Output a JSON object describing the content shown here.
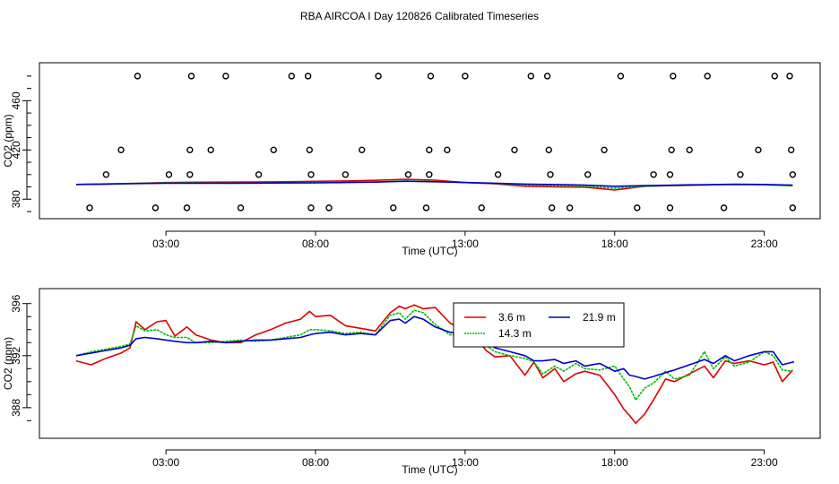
{
  "title": "RBA AIRCOA I  Day 120826  Calibrated Timeseries",
  "chart_data": [
    {
      "type": "scatter",
      "id": "top",
      "xlabel": "Time (UTC)",
      "ylabel": "CO2 (ppm)",
      "xlim": [
        0,
        24
      ],
      "ylim": [
        370,
        485
      ],
      "xticks": [
        3,
        8,
        13,
        18,
        23
      ],
      "xtick_labels": [
        "03:00",
        "08:00",
        "13:00",
        "18:00",
        "23:00"
      ],
      "yticks": [
        380,
        420,
        460
      ],
      "ytick_labels": [
        "380",
        "420",
        "460"
      ],
      "series": [
        {
          "name": "3.6 m",
          "color": "#dd0000",
          "style": "solid",
          "x": [
            0,
            1,
            2,
            3,
            4,
            5,
            6,
            7,
            8,
            9,
            10,
            11,
            12,
            13,
            14,
            15,
            16,
            17,
            18,
            19,
            20,
            21,
            22,
            23,
            23.95
          ],
          "y": [
            392.0,
            392.4,
            392.9,
            393.5,
            393.8,
            393.9,
            394.0,
            394.2,
            394.5,
            394.8,
            395.3,
            396.2,
            395.5,
            393.5,
            392.5,
            390.5,
            390.0,
            389.8,
            387.5,
            390.5,
            391.0,
            391.5,
            392.0,
            391.8,
            391.0
          ]
        },
        {
          "name": "14.3 m",
          "color": "#00bb00",
          "style": "dotted",
          "x": [
            0,
            1,
            2,
            3,
            4,
            5,
            6,
            7,
            8,
            9,
            10,
            11,
            12,
            13,
            14,
            15,
            16,
            17,
            18,
            19,
            20,
            21,
            22,
            23,
            23.95
          ],
          "y": [
            392.0,
            392.3,
            392.8,
            393.3,
            393.2,
            393.1,
            393.1,
            393.2,
            393.4,
            393.7,
            394.0,
            394.8,
            394.3,
            393.5,
            392.8,
            391.5,
            391.0,
            390.5,
            389.0,
            390.5,
            391.2,
            391.6,
            392.0,
            391.6,
            390.8
          ]
        },
        {
          "name": "21.9 m",
          "color": "#0000cc",
          "style": "solid",
          "x": [
            0,
            1,
            2,
            3,
            4,
            5,
            6,
            7,
            8,
            9,
            10,
            11,
            12,
            13,
            14,
            15,
            16,
            17,
            18,
            19,
            20,
            21,
            22,
            23,
            23.95
          ],
          "y": [
            392.0,
            392.3,
            392.7,
            393.0,
            393.0,
            393.0,
            393.1,
            393.2,
            393.3,
            393.6,
            393.9,
            394.6,
            394.2,
            393.6,
            393.0,
            392.3,
            391.9,
            391.5,
            390.5,
            391.0,
            391.5,
            391.8,
            392.2,
            392.0,
            391.5
          ]
        }
      ],
      "points": [
        {
          "x": 0.45,
          "y": 373
        },
        {
          "x": 1.0,
          "y": 400
        },
        {
          "x": 1.5,
          "y": 420
        },
        {
          "x": 2.05,
          "y": 480
        },
        {
          "x": 2.65,
          "y": 373
        },
        {
          "x": 3.1,
          "y": 400
        },
        {
          "x": 3.7,
          "y": 373
        },
        {
          "x": 3.8,
          "y": 400
        },
        {
          "x": 3.8,
          "y": 420
        },
        {
          "x": 3.85,
          "y": 480
        },
        {
          "x": 4.5,
          "y": 420
        },
        {
          "x": 5.0,
          "y": 480
        },
        {
          "x": 5.5,
          "y": 373
        },
        {
          "x": 6.1,
          "y": 400
        },
        {
          "x": 6.6,
          "y": 420
        },
        {
          "x": 7.2,
          "y": 480
        },
        {
          "x": 7.75,
          "y": 480
        },
        {
          "x": 7.8,
          "y": 420
        },
        {
          "x": 7.85,
          "y": 400
        },
        {
          "x": 7.85,
          "y": 373
        },
        {
          "x": 8.45,
          "y": 373
        },
        {
          "x": 9.0,
          "y": 400
        },
        {
          "x": 9.55,
          "y": 420
        },
        {
          "x": 10.1,
          "y": 480
        },
        {
          "x": 10.6,
          "y": 373
        },
        {
          "x": 11.1,
          "y": 400
        },
        {
          "x": 11.7,
          "y": 373
        },
        {
          "x": 11.8,
          "y": 400
        },
        {
          "x": 11.8,
          "y": 420
        },
        {
          "x": 11.85,
          "y": 480
        },
        {
          "x": 12.4,
          "y": 420
        },
        {
          "x": 13.0,
          "y": 480
        },
        {
          "x": 13.55,
          "y": 373
        },
        {
          "x": 14.1,
          "y": 400
        },
        {
          "x": 14.65,
          "y": 420
        },
        {
          "x": 15.2,
          "y": 480
        },
        {
          "x": 15.75,
          "y": 480
        },
        {
          "x": 15.8,
          "y": 420
        },
        {
          "x": 15.85,
          "y": 400
        },
        {
          "x": 15.9,
          "y": 373
        },
        {
          "x": 16.5,
          "y": 373
        },
        {
          "x": 17.1,
          "y": 400
        },
        {
          "x": 17.65,
          "y": 420
        },
        {
          "x": 18.2,
          "y": 480
        },
        {
          "x": 18.75,
          "y": 373
        },
        {
          "x": 19.3,
          "y": 400
        },
        {
          "x": 19.85,
          "y": 373
        },
        {
          "x": 19.85,
          "y": 400
        },
        {
          "x": 19.9,
          "y": 420
        },
        {
          "x": 19.95,
          "y": 480
        },
        {
          "x": 20.5,
          "y": 420
        },
        {
          "x": 21.1,
          "y": 480
        },
        {
          "x": 21.65,
          "y": 373
        },
        {
          "x": 22.2,
          "y": 400
        },
        {
          "x": 22.8,
          "y": 420
        },
        {
          "x": 23.35,
          "y": 480
        },
        {
          "x": 23.85,
          "y": 480
        },
        {
          "x": 23.9,
          "y": 420
        },
        {
          "x": 23.95,
          "y": 400
        },
        {
          "x": 23.95,
          "y": 373
        }
      ]
    },
    {
      "type": "line",
      "id": "bottom",
      "xlabel": "Time (UTC)",
      "ylabel": "CO2 (ppm)",
      "xlim": [
        0,
        24
      ],
      "ylim": [
        386.2,
        396.6
      ],
      "xticks": [
        3,
        8,
        13,
        18,
        23
      ],
      "xtick_labels": [
        "03:00",
        "08:00",
        "13:00",
        "18:00",
        "23:00"
      ],
      "yticks": [
        388,
        392,
        396
      ],
      "ytick_labels": [
        "388",
        "392",
        "396"
      ],
      "legend": {
        "position": "center-right",
        "entries": [
          "3.6 m",
          "14.3 m",
          "21.9 m"
        ]
      },
      "series": [
        {
          "name": "3.6 m",
          "color": "#dd0000",
          "style": "solid",
          "x": [
            0,
            0.5,
            1,
            1.5,
            1.8,
            2,
            2.3,
            2.7,
            3,
            3.3,
            3.7,
            4,
            4.5,
            5,
            5.5,
            6,
            6.5,
            7,
            7.5,
            7.8,
            8,
            8.5,
            9,
            9.5,
            10,
            10.5,
            10.8,
            11,
            11.3,
            11.6,
            12,
            12.5,
            13,
            13.3,
            13.7,
            14,
            14.5,
            15,
            15.3,
            15.6,
            16,
            16.3,
            16.7,
            17,
            17.5,
            18,
            18.3,
            18.5,
            18.7,
            19,
            19.3,
            19.7,
            20,
            20.5,
            21,
            21.3,
            21.7,
            22,
            22.5,
            23,
            23.3,
            23.6,
            23.95
          ],
          "y": [
            391.6,
            391.3,
            391.8,
            392.2,
            392.6,
            394.6,
            394.0,
            394.6,
            394.7,
            393.5,
            394.2,
            393.6,
            393.2,
            393.0,
            393.0,
            393.6,
            394.0,
            394.5,
            394.8,
            395.4,
            395.0,
            395.1,
            394.3,
            394.1,
            393.9,
            395.3,
            395.8,
            395.6,
            395.9,
            395.6,
            395.7,
            394.5,
            393.9,
            393.6,
            392.4,
            391.9,
            392.0,
            390.5,
            391.5,
            390.3,
            391.0,
            390.0,
            390.6,
            390.8,
            390.5,
            389.0,
            387.9,
            387.4,
            386.8,
            387.5,
            388.6,
            390.2,
            390.0,
            390.6,
            391.2,
            390.3,
            391.6,
            391.4,
            391.6,
            391.3,
            391.5,
            390.0,
            390.9
          ]
        },
        {
          "name": "14.3 m",
          "color": "#00bb00",
          "style": "dotted",
          "x": [
            0,
            0.5,
            1,
            1.5,
            1.8,
            2,
            2.3,
            2.7,
            3,
            3.3,
            3.7,
            4,
            4.5,
            5,
            5.5,
            6,
            6.5,
            7,
            7.5,
            7.8,
            8,
            8.5,
            9,
            9.5,
            10,
            10.5,
            10.8,
            11,
            11.3,
            11.6,
            12,
            12.5,
            13,
            13.3,
            13.7,
            14,
            14.5,
            15,
            15.3,
            15.6,
            16,
            16.3,
            16.7,
            17,
            17.5,
            18,
            18.3,
            18.5,
            18.7,
            19,
            19.3,
            19.7,
            20,
            20.5,
            21,
            21.3,
            21.7,
            22,
            22.5,
            23,
            23.3,
            23.6,
            23.95
          ],
          "y": [
            392.0,
            392.3,
            392.5,
            392.7,
            392.9,
            394.3,
            393.9,
            394.0,
            393.6,
            393.4,
            393.4,
            393.0,
            393.0,
            393.1,
            393.2,
            393.1,
            393.2,
            393.4,
            393.6,
            394.0,
            394.0,
            393.9,
            393.7,
            393.8,
            393.6,
            395.1,
            395.3,
            394.8,
            395.5,
            395.3,
            394.4,
            393.6,
            393.6,
            393.3,
            392.8,
            392.3,
            392.0,
            391.8,
            391.5,
            390.6,
            391.2,
            390.8,
            391.4,
            391.0,
            390.9,
            391.2,
            390.2,
            389.6,
            388.6,
            389.5,
            389.9,
            390.8,
            390.2,
            390.5,
            392.3,
            391.0,
            391.9,
            391.2,
            391.5,
            392.3,
            392.0,
            390.9,
            390.8
          ]
        },
        {
          "name": "21.9 m",
          "color": "#0000cc",
          "style": "solid",
          "x": [
            0,
            0.5,
            1,
            1.5,
            1.8,
            2,
            2.3,
            2.7,
            3,
            3.3,
            3.7,
            4,
            4.5,
            5,
            5.5,
            6,
            6.5,
            7,
            7.5,
            7.8,
            8,
            8.5,
            9,
            9.5,
            10,
            10.5,
            10.8,
            11,
            11.3,
            11.6,
            12,
            12.5,
            13,
            13.3,
            13.7,
            14,
            14.5,
            15,
            15.3,
            15.6,
            16,
            16.3,
            16.7,
            17,
            17.5,
            18,
            18.3,
            18.5,
            18.7,
            19,
            19.3,
            19.7,
            20,
            20.5,
            21,
            21.3,
            21.7,
            22,
            22.5,
            23,
            23.3,
            23.6,
            23.95,
            24.0
          ],
          "y": [
            392.0,
            392.2,
            392.4,
            392.6,
            392.8,
            393.3,
            393.4,
            393.3,
            393.2,
            393.1,
            393.0,
            393.0,
            393.1,
            393.0,
            393.1,
            393.2,
            393.2,
            393.3,
            393.4,
            393.6,
            393.7,
            393.8,
            393.6,
            393.7,
            393.6,
            394.7,
            394.8,
            394.5,
            395.0,
            394.8,
            394.2,
            393.8,
            393.7,
            393.5,
            393.0,
            392.6,
            392.3,
            392.0,
            391.6,
            391.6,
            391.7,
            391.4,
            391.6,
            391.2,
            391.4,
            390.8,
            391.0,
            390.5,
            390.4,
            390.2,
            390.4,
            390.7,
            390.9,
            391.3,
            391.7,
            391.4,
            392.0,
            391.6,
            392.0,
            392.3,
            392.3,
            391.3,
            391.5,
            391.5
          ]
        }
      ]
    }
  ]
}
